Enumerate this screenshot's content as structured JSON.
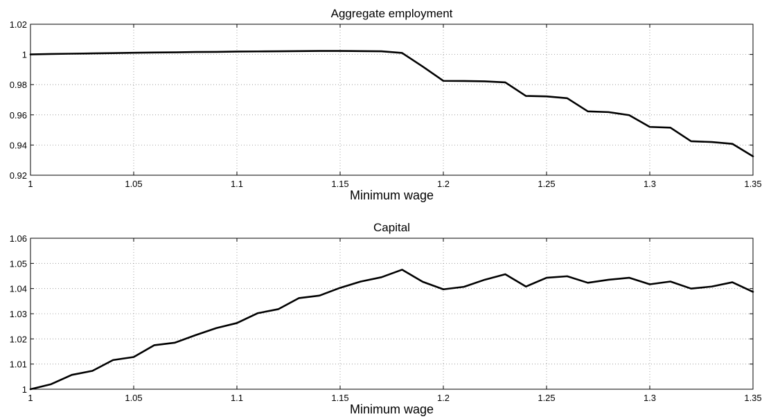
{
  "figure": {
    "line_color": "#000000",
    "grid": true
  },
  "chart_data": [
    {
      "type": "line",
      "title": "Aggregate employment",
      "xlabel": "Minimum wage",
      "ylabel": "",
      "xlim": [
        1,
        1.35
      ],
      "ylim": [
        0.92,
        1.02
      ],
      "xticks": [
        1,
        1.05,
        1.1,
        1.15,
        1.2,
        1.25,
        1.3,
        1.35
      ],
      "xtick_labels": [
        "1",
        "1.05",
        "1.1",
        "1.15",
        "1.2",
        "1.25",
        "1.3",
        "1.35"
      ],
      "yticks": [
        0.92,
        0.94,
        0.96,
        0.98,
        1,
        1.02
      ],
      "ytick_labels": [
        "0.92",
        "0.94",
        "0.96",
        "0.98",
        "1",
        "1.02"
      ],
      "grid": true,
      "x": [
        1,
        1.01,
        1.02,
        1.03,
        1.04,
        1.05,
        1.06,
        1.07,
        1.08,
        1.09,
        1.1,
        1.11,
        1.12,
        1.13,
        1.14,
        1.15,
        1.16,
        1.17,
        1.18,
        1.19,
        1.2,
        1.21,
        1.22,
        1.23,
        1.24,
        1.25,
        1.26,
        1.27,
        1.28,
        1.29,
        1.3,
        1.31,
        1.32,
        1.33,
        1.34,
        1.35
      ],
      "series": [
        {
          "values": [
            1.0,
            1.0003,
            1.0005,
            1.0007,
            1.0009,
            1.0011,
            1.0013,
            1.0014,
            1.0016,
            1.0017,
            1.0019,
            1.002,
            1.0021,
            1.0022,
            1.0023,
            1.0023,
            1.0022,
            1.0021,
            1.001,
            0.992,
            0.9825,
            0.9824,
            0.9822,
            0.9815,
            0.9725,
            0.9722,
            0.971,
            0.9623,
            0.9618,
            0.9598,
            0.952,
            0.9515,
            0.9425,
            0.942,
            0.9408,
            0.9325
          ],
          "color": "#000000"
        }
      ]
    },
    {
      "type": "line",
      "title": "Capital",
      "xlabel": "Minimum wage",
      "ylabel": "",
      "xlim": [
        1,
        1.35
      ],
      "ylim": [
        1,
        1.06
      ],
      "xticks": [
        1,
        1.05,
        1.1,
        1.15,
        1.2,
        1.25,
        1.3,
        1.35
      ],
      "xtick_labels": [
        "1",
        "1.05",
        "1.1",
        "1.15",
        "1.2",
        "1.25",
        "1.3",
        "1.35"
      ],
      "yticks": [
        1,
        1.01,
        1.02,
        1.03,
        1.04,
        1.05,
        1.06
      ],
      "ytick_labels": [
        "1",
        "1.01",
        "1.02",
        "1.03",
        "1.04",
        "1.05",
        "1.06"
      ],
      "grid": true,
      "x": [
        1,
        1.01,
        1.02,
        1.03,
        1.04,
        1.05,
        1.06,
        1.07,
        1.08,
        1.09,
        1.1,
        1.11,
        1.12,
        1.13,
        1.14,
        1.15,
        1.16,
        1.17,
        1.18,
        1.19,
        1.2,
        1.21,
        1.22,
        1.23,
        1.24,
        1.25,
        1.26,
        1.27,
        1.28,
        1.29,
        1.3,
        1.31,
        1.32,
        1.33,
        1.34,
        1.35
      ],
      "series": [
        {
          "values": [
            1.0,
            1.002,
            1.0057,
            1.0073,
            1.0116,
            1.0128,
            1.0175,
            1.0185,
            1.0215,
            1.0243,
            1.0263,
            1.0302,
            1.0318,
            1.0362,
            1.0372,
            1.0403,
            1.0428,
            1.0445,
            1.0475,
            1.0427,
            1.0397,
            1.0407,
            1.0435,
            1.0457,
            1.0408,
            1.0443,
            1.0449,
            1.0423,
            1.0435,
            1.0443,
            1.0417,
            1.0428,
            1.04,
            1.0408,
            1.0425,
            1.0387
          ],
          "color": "#000000"
        }
      ]
    }
  ]
}
